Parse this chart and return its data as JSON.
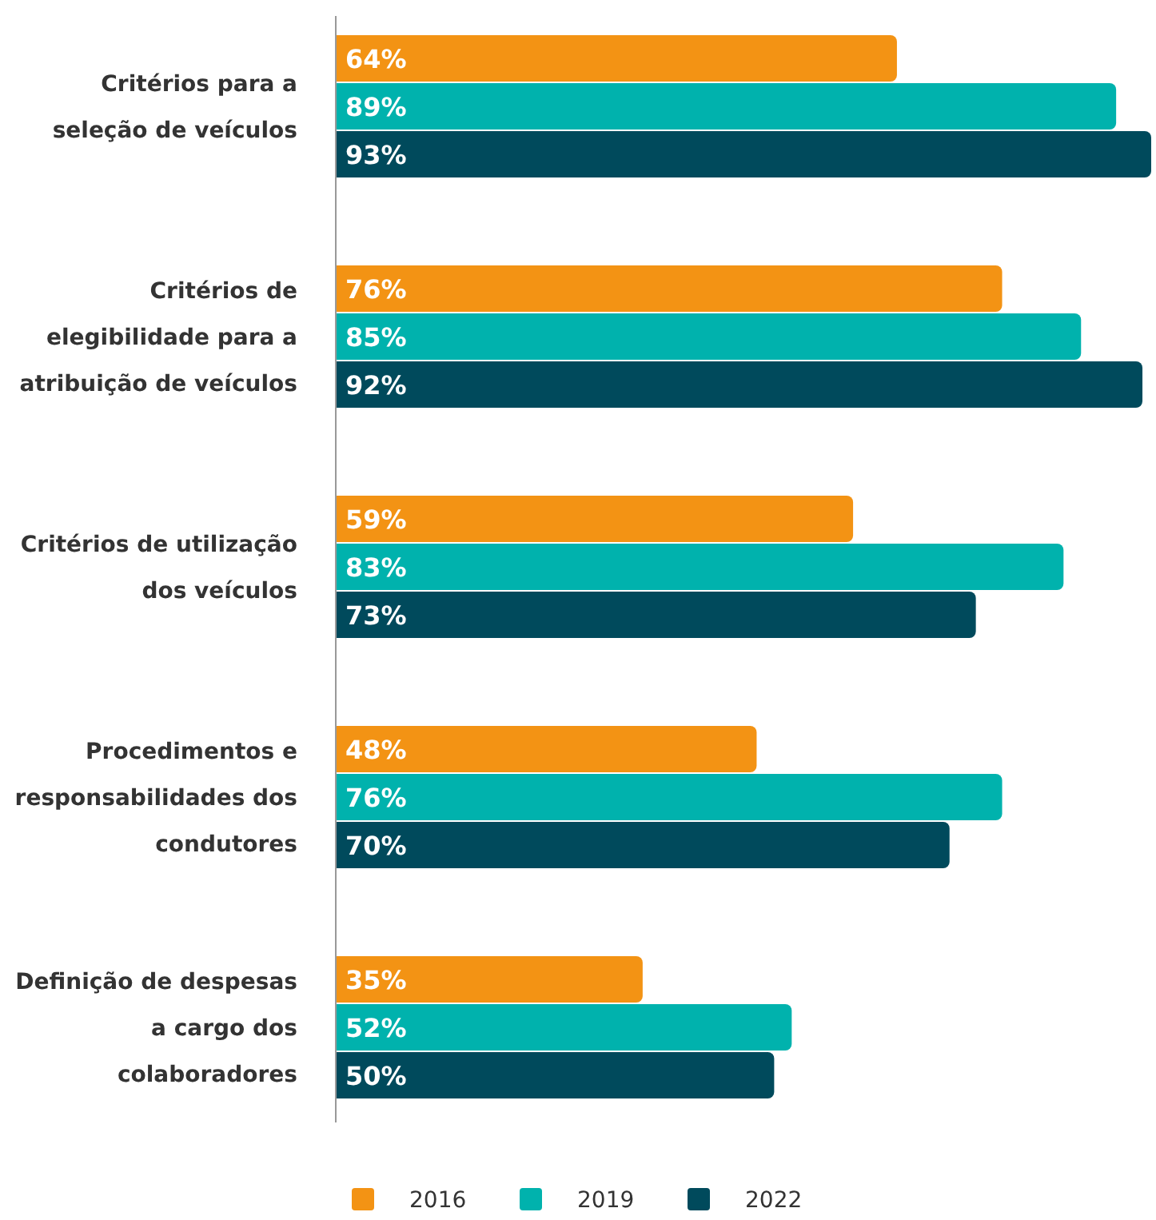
{
  "chart_data": {
    "type": "bar",
    "orientation": "horizontal",
    "categories": [
      "Critérios para a seleção de veículos",
      "Critérios de elegibilidade para a atribuição de veículos",
      "Critérios de utilização dos veículos",
      "Procedimentos e responsabilidades dos condutores",
      "Definição de despesas a cargo dos colaboradores"
    ],
    "series": [
      {
        "name": "2016",
        "color": "#f39314",
        "values": [
          64,
          76,
          59,
          48,
          35
        ],
        "value_labels": [
          "64%",
          "76%",
          "59%",
          "48%",
          "35%"
        ]
      },
      {
        "name": "2019",
        "color": "#00b2ad",
        "values": [
          89,
          85,
          83,
          76,
          52
        ],
        "value_labels": [
          "89%",
          "85%",
          "83%",
          "76%",
          "52%"
        ]
      },
      {
        "name": "2022",
        "color": "#004a5c",
        "values": [
          93,
          92,
          73,
          70,
          50
        ],
        "value_labels": [
          "93%",
          "92%",
          "73%",
          "70%",
          "50%"
        ]
      }
    ],
    "tick_labels": "y",
    "legend": "bottom"
  }
}
